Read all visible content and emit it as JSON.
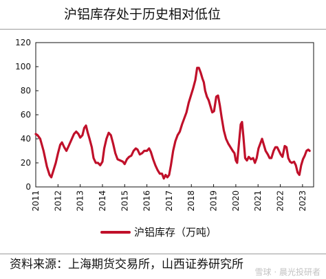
{
  "chart_data": {
    "type": "line",
    "title": "沪铝库存处于历史相对低位",
    "xlabel": "",
    "ylabel": "",
    "ylim": [
      0,
      120
    ],
    "yticks": [
      0,
      20,
      40,
      60,
      80,
      100,
      120
    ],
    "xlim": [
      2011,
      2023.5
    ],
    "xticks": [
      2011,
      2012,
      2013,
      2014,
      2015,
      2016,
      2017,
      2018,
      2019,
      2020,
      2021,
      2022,
      2023
    ],
    "grid": false,
    "legend_position": "bottom-center",
    "series": [
      {
        "name": "沪铝库存（万吨）",
        "color": "#c0102a",
        "points": [
          [
            2011.0,
            44
          ],
          [
            2011.08,
            43
          ],
          [
            2011.2,
            40
          ],
          [
            2011.35,
            30
          ],
          [
            2011.5,
            17
          ],
          [
            2011.62,
            10
          ],
          [
            2011.7,
            8
          ],
          [
            2011.8,
            14
          ],
          [
            2011.9,
            20
          ],
          [
            2012.0,
            28
          ],
          [
            2012.1,
            35
          ],
          [
            2012.18,
            37
          ],
          [
            2012.28,
            33
          ],
          [
            2012.38,
            30
          ],
          [
            2012.48,
            34
          ],
          [
            2012.6,
            39
          ],
          [
            2012.72,
            44
          ],
          [
            2012.82,
            46
          ],
          [
            2012.92,
            44
          ],
          [
            2013.0,
            41
          ],
          [
            2013.1,
            43
          ],
          [
            2013.18,
            49
          ],
          [
            2013.26,
            51
          ],
          [
            2013.34,
            45
          ],
          [
            2013.42,
            40
          ],
          [
            2013.52,
            33
          ],
          [
            2013.6,
            24
          ],
          [
            2013.7,
            20
          ],
          [
            2013.8,
            20
          ],
          [
            2013.9,
            18
          ],
          [
            2014.0,
            21
          ],
          [
            2014.08,
            32
          ],
          [
            2014.18,
            40
          ],
          [
            2014.28,
            45
          ],
          [
            2014.38,
            43
          ],
          [
            2014.48,
            36
          ],
          [
            2014.58,
            28
          ],
          [
            2014.68,
            23
          ],
          [
            2014.8,
            22
          ],
          [
            2014.92,
            21
          ],
          [
            2015.0,
            19
          ],
          [
            2015.1,
            23
          ],
          [
            2015.2,
            25
          ],
          [
            2015.3,
            26
          ],
          [
            2015.4,
            30
          ],
          [
            2015.5,
            32
          ],
          [
            2015.58,
            31
          ],
          [
            2015.68,
            27
          ],
          [
            2015.78,
            28
          ],
          [
            2015.88,
            30
          ],
          [
            2016.0,
            30
          ],
          [
            2016.1,
            32
          ],
          [
            2016.18,
            29
          ],
          [
            2016.28,
            23
          ],
          [
            2016.38,
            18
          ],
          [
            2016.48,
            14
          ],
          [
            2016.58,
            11
          ],
          [
            2016.68,
            11
          ],
          [
            2016.76,
            7
          ],
          [
            2016.84,
            10
          ],
          [
            2016.92,
            8
          ],
          [
            2017.0,
            10
          ],
          [
            2017.08,
            18
          ],
          [
            2017.18,
            30
          ],
          [
            2017.28,
            38
          ],
          [
            2017.38,
            43
          ],
          [
            2017.48,
            46
          ],
          [
            2017.58,
            52
          ],
          [
            2017.68,
            57
          ],
          [
            2017.78,
            62
          ],
          [
            2017.88,
            70
          ],
          [
            2017.98,
            76
          ],
          [
            2018.08,
            82
          ],
          [
            2018.18,
            89
          ],
          [
            2018.26,
            99
          ],
          [
            2018.34,
            99
          ],
          [
            2018.42,
            95
          ],
          [
            2018.5,
            90
          ],
          [
            2018.56,
            87
          ],
          [
            2018.62,
            80
          ],
          [
            2018.7,
            75
          ],
          [
            2018.78,
            72
          ],
          [
            2018.86,
            67
          ],
          [
            2018.94,
            62
          ],
          [
            2019.02,
            63
          ],
          [
            2019.12,
            75
          ],
          [
            2019.2,
            76
          ],
          [
            2019.28,
            68
          ],
          [
            2019.36,
            58
          ],
          [
            2019.46,
            47
          ],
          [
            2019.56,
            40
          ],
          [
            2019.66,
            36
          ],
          [
            2019.76,
            33
          ],
          [
            2019.86,
            30
          ],
          [
            2019.94,
            28
          ],
          [
            2020.0,
            22
          ],
          [
            2020.06,
            20
          ],
          [
            2020.14,
            36
          ],
          [
            2020.22,
            52
          ],
          [
            2020.28,
            54
          ],
          [
            2020.34,
            42
          ],
          [
            2020.42,
            24
          ],
          [
            2020.5,
            22
          ],
          [
            2020.58,
            25
          ],
          [
            2020.68,
            23
          ],
          [
            2020.78,
            24
          ],
          [
            2020.86,
            20
          ],
          [
            2020.94,
            24
          ],
          [
            2021.02,
            32
          ],
          [
            2021.1,
            36
          ],
          [
            2021.18,
            40
          ],
          [
            2021.26,
            35
          ],
          [
            2021.34,
            30
          ],
          [
            2021.44,
            27
          ],
          [
            2021.52,
            24
          ],
          [
            2021.6,
            24
          ],
          [
            2021.7,
            30
          ],
          [
            2021.78,
            33
          ],
          [
            2021.86,
            33
          ],
          [
            2021.94,
            30
          ],
          [
            2022.02,
            27
          ],
          [
            2022.1,
            25
          ],
          [
            2022.2,
            34
          ],
          [
            2022.28,
            33
          ],
          [
            2022.36,
            24
          ],
          [
            2022.44,
            21
          ],
          [
            2022.52,
            20
          ],
          [
            2022.62,
            21
          ],
          [
            2022.7,
            18
          ],
          [
            2022.78,
            12
          ],
          [
            2022.86,
            10
          ],
          [
            2022.94,
            18
          ],
          [
            2023.02,
            23
          ],
          [
            2023.1,
            26
          ],
          [
            2023.18,
            30
          ],
          [
            2023.26,
            31
          ],
          [
            2023.32,
            30
          ]
        ]
      }
    ]
  },
  "footer": {
    "source": "资料来源：上海期货交易所，山西证券研究所",
    "watermark": "雪球 · 晨光投研者"
  }
}
